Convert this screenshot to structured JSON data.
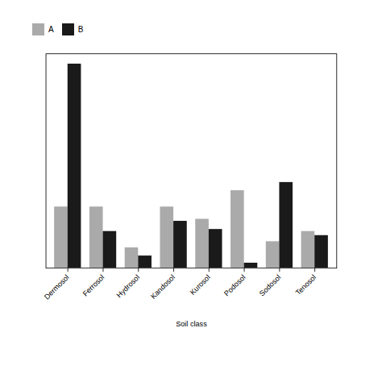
{
  "chart_data": {
    "type": "bar",
    "categories": [
      "Dermosol",
      "Ferrosol",
      "Hydrosol",
      "Kandosol",
      "Kurosol",
      "Podosol",
      "Sodosol",
      "Tenosol"
    ],
    "series": [
      {
        "name": "A",
        "color": "#aaaaaa",
        "values": [
          30,
          30,
          10,
          30,
          24,
          38,
          13,
          18
        ]
      },
      {
        "name": "B",
        "color": "#1a1a1a",
        "values": [
          100,
          18,
          6,
          23,
          19,
          2.5,
          42,
          16
        ]
      }
    ],
    "xlabel": "Soil class",
    "ylim": [
      0,
      105
    ],
    "tick_labels": "x",
    "legend": "top"
  }
}
